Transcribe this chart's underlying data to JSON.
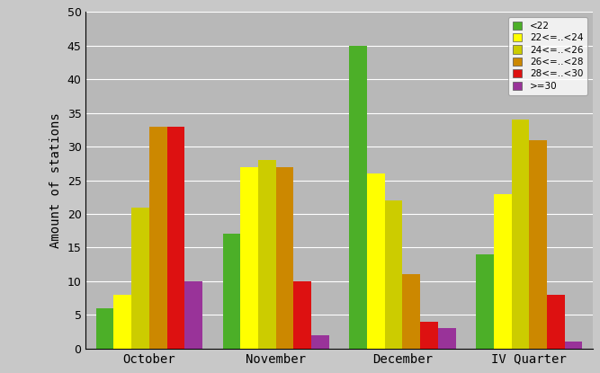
{
  "categories": [
    "October",
    "November",
    "December",
    "IV Quarter"
  ],
  "series": [
    {
      "label": "<22",
      "color": "#4caf28",
      "values": [
        6,
        17,
        45,
        14
      ]
    },
    {
      "label": "22<=..<24",
      "color": "#ffff00",
      "values": [
        8,
        27,
        26,
        23
      ]
    },
    {
      "label": "24<=..<26",
      "color": "#cccc00",
      "values": [
        21,
        28,
        22,
        34
      ]
    },
    {
      "label": "26<=..<28",
      "color": "#cc8800",
      "values": [
        33,
        27,
        11,
        31
      ]
    },
    {
      "label": "28<=..<30",
      "color": "#dd1111",
      "values": [
        33,
        10,
        4,
        8
      ]
    },
    {
      "label": ">=30",
      "color": "#993399",
      "values": [
        10,
        2,
        3,
        1
      ]
    }
  ],
  "ylabel": "Amount of stations",
  "ylim": [
    0,
    50
  ],
  "yticks": [
    0,
    5,
    10,
    15,
    20,
    25,
    30,
    35,
    40,
    45,
    50
  ],
  "background_color": "#c8c8c8",
  "plot_bg_color": "#b8b8b8",
  "grid_color": "#ffffff",
  "bar_width": 0.14,
  "legend_labels": [
    "<22",
    "22<=..<24",
    "24<=..<26",
    "26<=..<28",
    "28<=..<30",
    ">=30"
  ]
}
